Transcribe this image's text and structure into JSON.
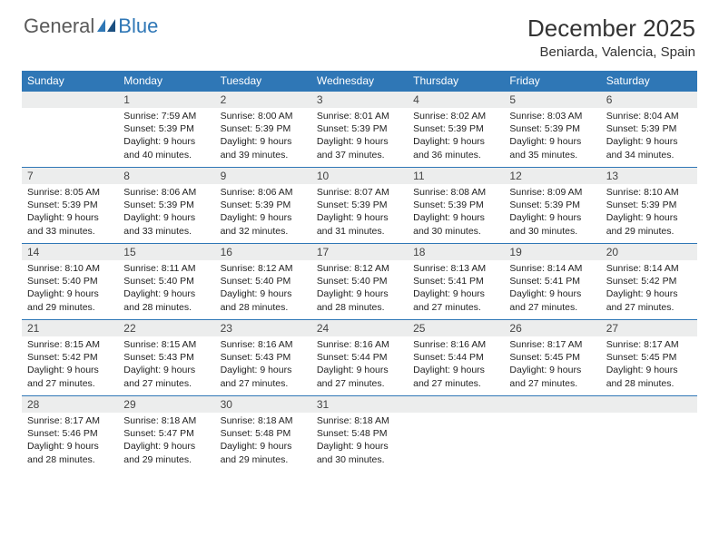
{
  "logo": {
    "text1": "General",
    "text2": "Blue"
  },
  "title": "December 2025",
  "location": "Beniarda, Valencia, Spain",
  "colors": {
    "header_bg": "#2f77b6",
    "daynum_bg": "#eceded",
    "border": "#2f77b6"
  },
  "dayHeaders": [
    "Sunday",
    "Monday",
    "Tuesday",
    "Wednesday",
    "Thursday",
    "Friday",
    "Saturday"
  ],
  "weeks": [
    [
      null,
      {
        "n": "1",
        "sr": "Sunrise: 7:59 AM",
        "ss": "Sunset: 5:39 PM",
        "d1": "Daylight: 9 hours",
        "d2": "and 40 minutes."
      },
      {
        "n": "2",
        "sr": "Sunrise: 8:00 AM",
        "ss": "Sunset: 5:39 PM",
        "d1": "Daylight: 9 hours",
        "d2": "and 39 minutes."
      },
      {
        "n": "3",
        "sr": "Sunrise: 8:01 AM",
        "ss": "Sunset: 5:39 PM",
        "d1": "Daylight: 9 hours",
        "d2": "and 37 minutes."
      },
      {
        "n": "4",
        "sr": "Sunrise: 8:02 AM",
        "ss": "Sunset: 5:39 PM",
        "d1": "Daylight: 9 hours",
        "d2": "and 36 minutes."
      },
      {
        "n": "5",
        "sr": "Sunrise: 8:03 AM",
        "ss": "Sunset: 5:39 PM",
        "d1": "Daylight: 9 hours",
        "d2": "and 35 minutes."
      },
      {
        "n": "6",
        "sr": "Sunrise: 8:04 AM",
        "ss": "Sunset: 5:39 PM",
        "d1": "Daylight: 9 hours",
        "d2": "and 34 minutes."
      }
    ],
    [
      {
        "n": "7",
        "sr": "Sunrise: 8:05 AM",
        "ss": "Sunset: 5:39 PM",
        "d1": "Daylight: 9 hours",
        "d2": "and 33 minutes."
      },
      {
        "n": "8",
        "sr": "Sunrise: 8:06 AM",
        "ss": "Sunset: 5:39 PM",
        "d1": "Daylight: 9 hours",
        "d2": "and 33 minutes."
      },
      {
        "n": "9",
        "sr": "Sunrise: 8:06 AM",
        "ss": "Sunset: 5:39 PM",
        "d1": "Daylight: 9 hours",
        "d2": "and 32 minutes."
      },
      {
        "n": "10",
        "sr": "Sunrise: 8:07 AM",
        "ss": "Sunset: 5:39 PM",
        "d1": "Daylight: 9 hours",
        "d2": "and 31 minutes."
      },
      {
        "n": "11",
        "sr": "Sunrise: 8:08 AM",
        "ss": "Sunset: 5:39 PM",
        "d1": "Daylight: 9 hours",
        "d2": "and 30 minutes."
      },
      {
        "n": "12",
        "sr": "Sunrise: 8:09 AM",
        "ss": "Sunset: 5:39 PM",
        "d1": "Daylight: 9 hours",
        "d2": "and 30 minutes."
      },
      {
        "n": "13",
        "sr": "Sunrise: 8:10 AM",
        "ss": "Sunset: 5:39 PM",
        "d1": "Daylight: 9 hours",
        "d2": "and 29 minutes."
      }
    ],
    [
      {
        "n": "14",
        "sr": "Sunrise: 8:10 AM",
        "ss": "Sunset: 5:40 PM",
        "d1": "Daylight: 9 hours",
        "d2": "and 29 minutes."
      },
      {
        "n": "15",
        "sr": "Sunrise: 8:11 AM",
        "ss": "Sunset: 5:40 PM",
        "d1": "Daylight: 9 hours",
        "d2": "and 28 minutes."
      },
      {
        "n": "16",
        "sr": "Sunrise: 8:12 AM",
        "ss": "Sunset: 5:40 PM",
        "d1": "Daylight: 9 hours",
        "d2": "and 28 minutes."
      },
      {
        "n": "17",
        "sr": "Sunrise: 8:12 AM",
        "ss": "Sunset: 5:40 PM",
        "d1": "Daylight: 9 hours",
        "d2": "and 28 minutes."
      },
      {
        "n": "18",
        "sr": "Sunrise: 8:13 AM",
        "ss": "Sunset: 5:41 PM",
        "d1": "Daylight: 9 hours",
        "d2": "and 27 minutes."
      },
      {
        "n": "19",
        "sr": "Sunrise: 8:14 AM",
        "ss": "Sunset: 5:41 PM",
        "d1": "Daylight: 9 hours",
        "d2": "and 27 minutes."
      },
      {
        "n": "20",
        "sr": "Sunrise: 8:14 AM",
        "ss": "Sunset: 5:42 PM",
        "d1": "Daylight: 9 hours",
        "d2": "and 27 minutes."
      }
    ],
    [
      {
        "n": "21",
        "sr": "Sunrise: 8:15 AM",
        "ss": "Sunset: 5:42 PM",
        "d1": "Daylight: 9 hours",
        "d2": "and 27 minutes."
      },
      {
        "n": "22",
        "sr": "Sunrise: 8:15 AM",
        "ss": "Sunset: 5:43 PM",
        "d1": "Daylight: 9 hours",
        "d2": "and 27 minutes."
      },
      {
        "n": "23",
        "sr": "Sunrise: 8:16 AM",
        "ss": "Sunset: 5:43 PM",
        "d1": "Daylight: 9 hours",
        "d2": "and 27 minutes."
      },
      {
        "n": "24",
        "sr": "Sunrise: 8:16 AM",
        "ss": "Sunset: 5:44 PM",
        "d1": "Daylight: 9 hours",
        "d2": "and 27 minutes."
      },
      {
        "n": "25",
        "sr": "Sunrise: 8:16 AM",
        "ss": "Sunset: 5:44 PM",
        "d1": "Daylight: 9 hours",
        "d2": "and 27 minutes."
      },
      {
        "n": "26",
        "sr": "Sunrise: 8:17 AM",
        "ss": "Sunset: 5:45 PM",
        "d1": "Daylight: 9 hours",
        "d2": "and 27 minutes."
      },
      {
        "n": "27",
        "sr": "Sunrise: 8:17 AM",
        "ss": "Sunset: 5:45 PM",
        "d1": "Daylight: 9 hours",
        "d2": "and 28 minutes."
      }
    ],
    [
      {
        "n": "28",
        "sr": "Sunrise: 8:17 AM",
        "ss": "Sunset: 5:46 PM",
        "d1": "Daylight: 9 hours",
        "d2": "and 28 minutes."
      },
      {
        "n": "29",
        "sr": "Sunrise: 8:18 AM",
        "ss": "Sunset: 5:47 PM",
        "d1": "Daylight: 9 hours",
        "d2": "and 29 minutes."
      },
      {
        "n": "30",
        "sr": "Sunrise: 8:18 AM",
        "ss": "Sunset: 5:48 PM",
        "d1": "Daylight: 9 hours",
        "d2": "and 29 minutes."
      },
      {
        "n": "31",
        "sr": "Sunrise: 8:18 AM",
        "ss": "Sunset: 5:48 PM",
        "d1": "Daylight: 9 hours",
        "d2": "and 30 minutes."
      },
      null,
      null,
      null
    ]
  ]
}
